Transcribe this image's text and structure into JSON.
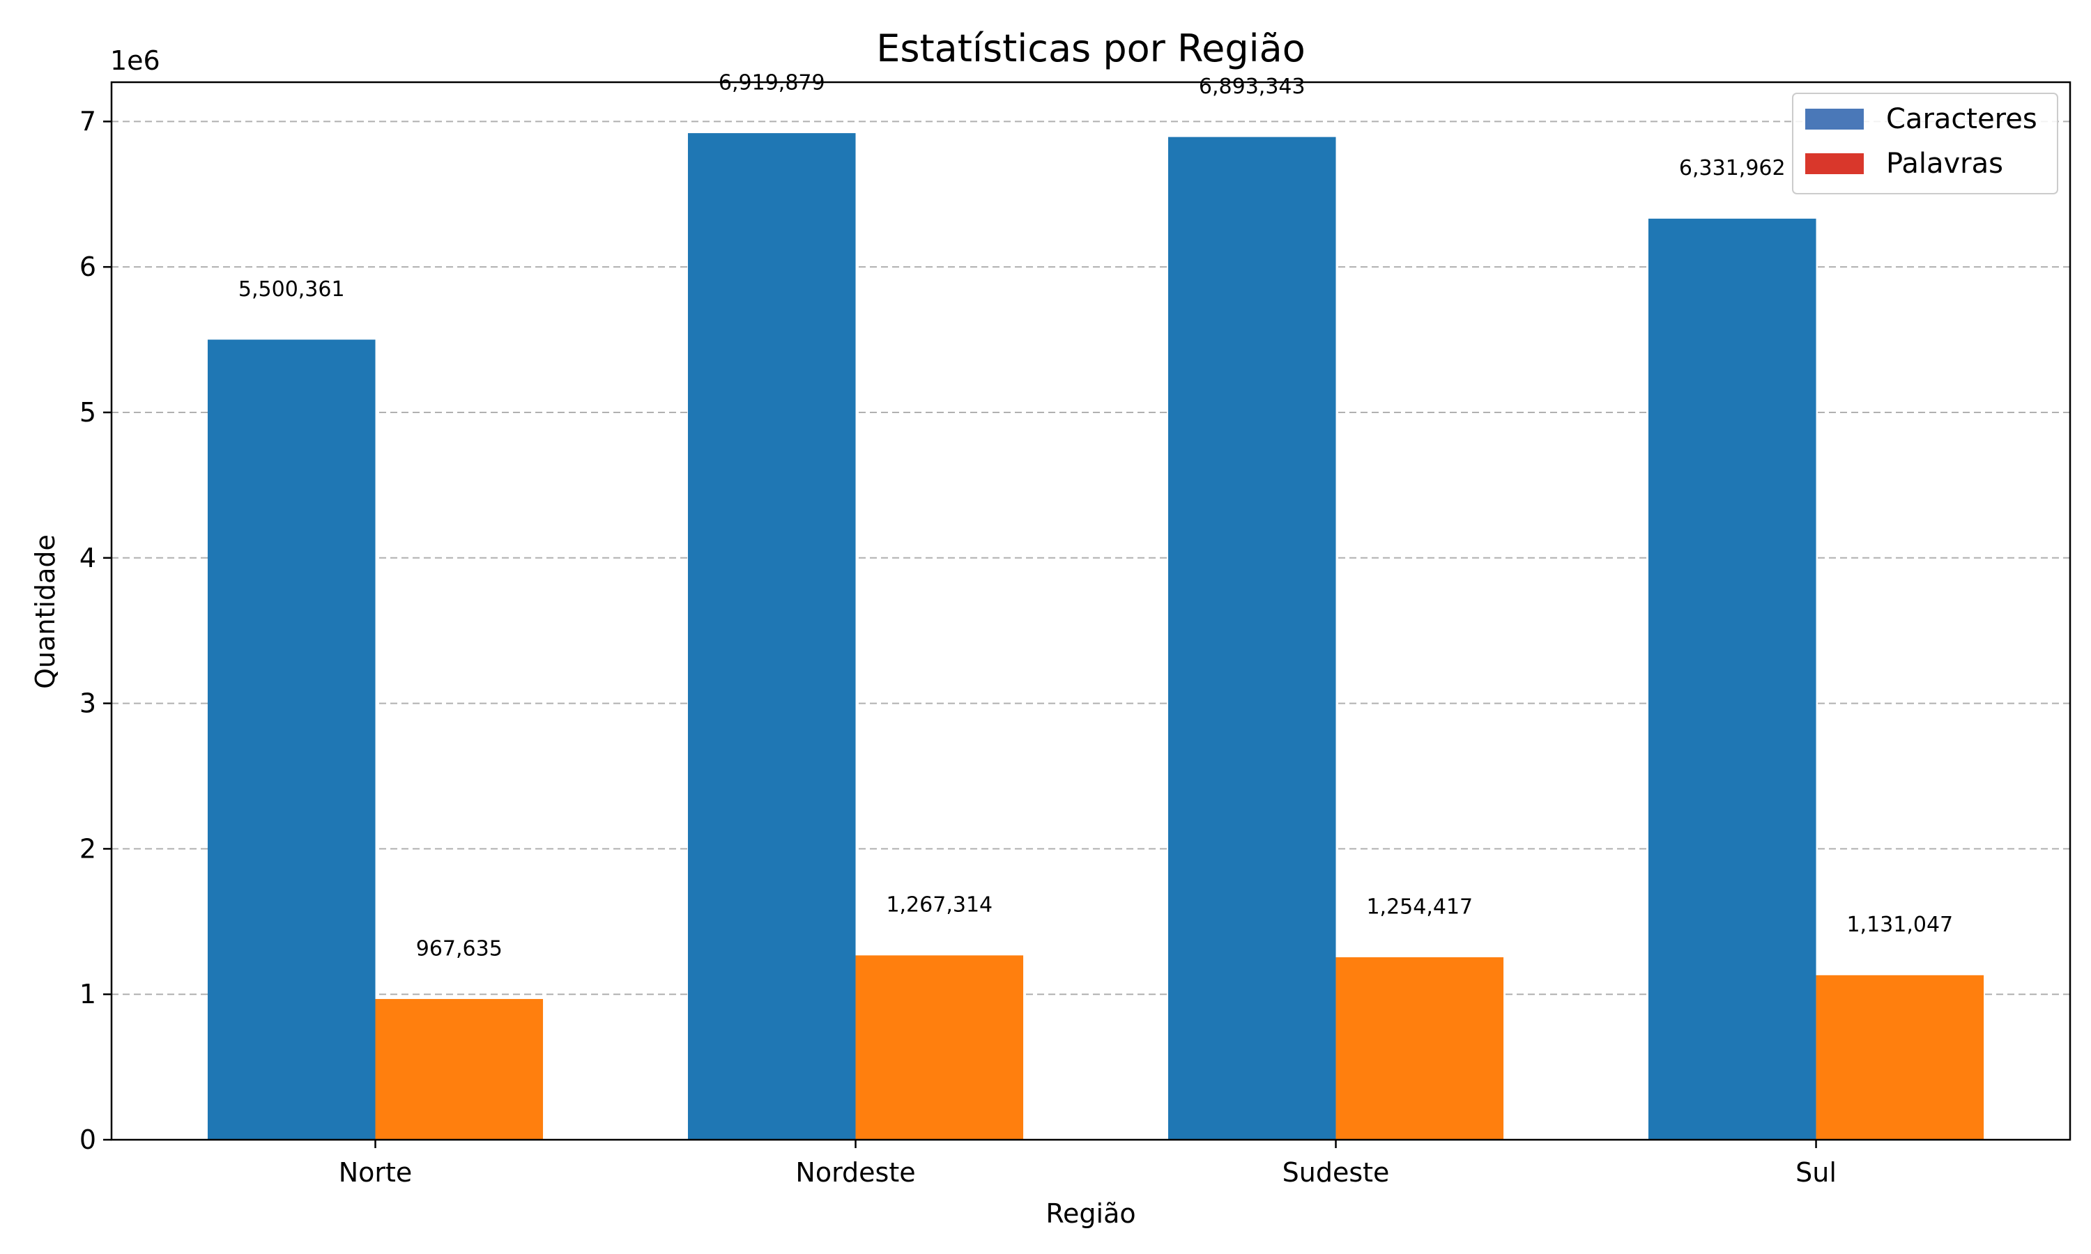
{
  "chart_data": {
    "type": "bar",
    "title": "Estatísticas por Região",
    "xlabel": "Região",
    "ylabel": "Quantidade",
    "y_offset_label": "1e6",
    "categories": [
      "Norte",
      "Nordeste",
      "Sudeste",
      "Sul"
    ],
    "series": [
      {
        "name": "Caracteres",
        "values": [
          5500361,
          6919879,
          6893343,
          6331962
        ],
        "value_labels": [
          "5,500,361",
          "6,919,879",
          "6,893,343",
          "6,331,962"
        ],
        "color": "#1f77b4",
        "legend_color": "#4a78b8"
      },
      {
        "name": "Palavras",
        "values": [
          967635,
          1267314,
          1254417,
          1131047
        ],
        "value_labels": [
          "967,635",
          "1,267,314",
          "1,254,417",
          "1,131,047"
        ],
        "color": "#ff7f0e",
        "legend_color": "#d9372b"
      }
    ],
    "ylim": [
      0,
      7270000
    ],
    "yticks": [
      0,
      1000000,
      2000000,
      3000000,
      4000000,
      5000000,
      6000000,
      7000000
    ],
    "ytick_labels": [
      "0",
      "1",
      "2",
      "3",
      "4",
      "5",
      "6",
      "7"
    ],
    "grid": "y-dashed",
    "legend_position": "top-right"
  }
}
